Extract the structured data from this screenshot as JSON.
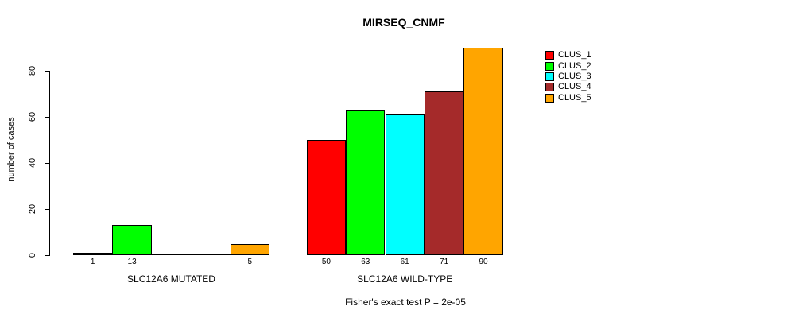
{
  "chart_data": {
    "type": "bar",
    "title": "MIRSEQ_CNMF",
    "ylabel": "number of cases",
    "footnote": "Fisher's exact test P = 2e-05",
    "yticks": [
      0,
      20,
      40,
      60,
      80
    ],
    "ylim": [
      0,
      90
    ],
    "grid": false,
    "legend_position": "right",
    "background": "#FFFFFF",
    "bar_border_color": "#000000",
    "series": [
      {
        "name": "CLUS_1",
        "color": "#FF0000"
      },
      {
        "name": "CLUS_2",
        "color": "#00FF00"
      },
      {
        "name": "CLUS_3",
        "color": "#00FFFF"
      },
      {
        "name": "CLUS_4",
        "color": "#A52A2A"
      },
      {
        "name": "CLUS_5",
        "color": "#FFA500"
      }
    ],
    "groups": [
      {
        "label": "SLC12A6 MUTATED",
        "values": [
          1,
          13,
          0,
          0,
          5
        ]
      },
      {
        "label": "SLC12A6 WILD-TYPE",
        "values": [
          50,
          63,
          61,
          71,
          90
        ]
      }
    ]
  }
}
